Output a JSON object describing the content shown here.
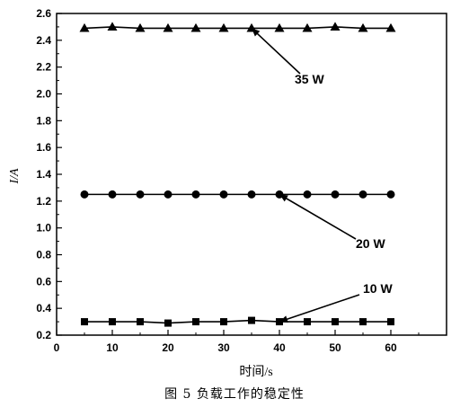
{
  "caption": "图 5 负载工作的稳定性",
  "chart_data": {
    "type": "line",
    "title": "",
    "xlabel": "时间/s",
    "ylabel": "I/A",
    "xlim": [
      0,
      70
    ],
    "ylim": [
      0.2,
      2.6
    ],
    "x_ticks": [
      0,
      10,
      20,
      30,
      40,
      50,
      60
    ],
    "y_ticks": [
      0.2,
      0.4,
      0.6,
      0.8,
      1.0,
      1.2,
      1.4,
      1.6,
      1.8,
      2.0,
      2.2,
      2.4,
      2.6
    ],
    "grid": false,
    "x": [
      5,
      10,
      15,
      20,
      25,
      30,
      35,
      40,
      45,
      50,
      55,
      60
    ],
    "series": [
      {
        "name": "35 W",
        "marker": "triangle",
        "values": [
          2.49,
          2.5,
          2.49,
          2.49,
          2.49,
          2.49,
          2.49,
          2.49,
          2.49,
          2.5,
          2.49,
          2.49
        ]
      },
      {
        "name": "20 W",
        "marker": "circle",
        "values": [
          1.25,
          1.25,
          1.25,
          1.25,
          1.25,
          1.25,
          1.25,
          1.25,
          1.25,
          1.25,
          1.25,
          1.25
        ]
      },
      {
        "name": "10 W",
        "marker": "square",
        "values": [
          0.3,
          0.3,
          0.3,
          0.29,
          0.3,
          0.3,
          0.31,
          0.3,
          0.3,
          0.3,
          0.3,
          0.3
        ]
      }
    ],
    "annotations": [
      {
        "text": "35 W",
        "series": "35 W",
        "point_x": 35
      },
      {
        "text": "20 W",
        "series": "20 W",
        "point_x": 40
      },
      {
        "text": "10 W",
        "series": "10 W",
        "point_x": 40
      }
    ]
  }
}
